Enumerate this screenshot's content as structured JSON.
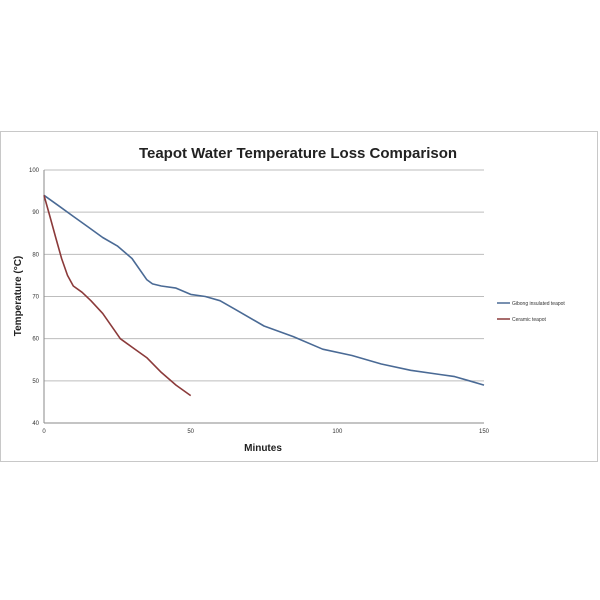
{
  "chart_data": {
    "type": "line",
    "title": "Teapot Water Temperature Loss Comparison",
    "xlabel": "Minutes",
    "ylabel": "Temperature (°C)",
    "xlim": [
      0,
      150
    ],
    "ylim": [
      40,
      100
    ],
    "xticks": [
      0,
      50,
      100,
      150
    ],
    "yticks": [
      40,
      50,
      60,
      70,
      80,
      90,
      100
    ],
    "grid": "horizontal",
    "legend": "right",
    "series": [
      {
        "name": "Gibong insulated teapot",
        "color": "#4a6a95",
        "points": [
          [
            0,
            94
          ],
          [
            5,
            91.5
          ],
          [
            10,
            89
          ],
          [
            15,
            86.5
          ],
          [
            20,
            84
          ],
          [
            25,
            82
          ],
          [
            30,
            79
          ],
          [
            35,
            74
          ],
          [
            37,
            73
          ],
          [
            40,
            72.5
          ],
          [
            45,
            72
          ],
          [
            50,
            70.5
          ],
          [
            55,
            70
          ],
          [
            60,
            69
          ],
          [
            65,
            67
          ],
          [
            75,
            63
          ],
          [
            85,
            60.5
          ],
          [
            95,
            57.5
          ],
          [
            105,
            56
          ],
          [
            115,
            54
          ],
          [
            125,
            52.5
          ],
          [
            135,
            51.5
          ],
          [
            140,
            51
          ],
          [
            145,
            50
          ],
          [
            150,
            49
          ]
        ]
      },
      {
        "name": "Ceramic teapot",
        "color": "#8b3a3a",
        "points": [
          [
            0,
            94
          ],
          [
            2,
            89
          ],
          [
            4,
            84
          ],
          [
            6,
            79
          ],
          [
            8,
            75
          ],
          [
            10,
            72.5
          ],
          [
            13,
            71
          ],
          [
            16,
            69
          ],
          [
            20,
            66
          ],
          [
            24,
            62
          ],
          [
            26,
            60
          ],
          [
            30,
            58
          ],
          [
            35,
            55.5
          ],
          [
            40,
            52
          ],
          [
            45,
            49
          ],
          [
            50,
            46.5
          ]
        ]
      }
    ]
  }
}
